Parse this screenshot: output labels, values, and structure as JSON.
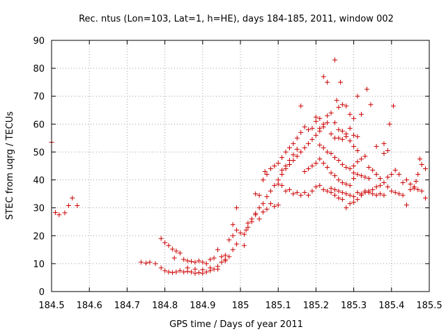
{
  "chart_data": {
    "type": "scatter",
    "title": "Rec. ntus (Lon=103, Lat=1, h=HE), days 184-185, 2011, window 002",
    "xlabel": "GPS time / Days of year 2011",
    "ylabel": "STEC from uqrg / TECUs",
    "xlim": [
      184.5,
      185.5
    ],
    "ylim": [
      0,
      90
    ],
    "x_ticks": [
      184.5,
      184.6,
      184.7,
      184.8,
      184.9,
      185,
      185.1,
      185.2,
      185.3,
      185.4,
      185.5
    ],
    "x_tick_labels": [
      "184.5",
      "184.6",
      "184.7",
      "184.8",
      "184.9",
      "185",
      "185.1",
      "185.2",
      "185.3",
      "185.4",
      "185.5"
    ],
    "y_ticks": [
      0,
      10,
      20,
      30,
      40,
      50,
      60,
      70,
      80,
      90
    ],
    "y_tick_labels": [
      "0",
      "10",
      "20",
      "30",
      "40",
      "50",
      "60",
      "70",
      "80",
      "90"
    ],
    "grid": true,
    "marker": "plus",
    "color": "#cc0000",
    "series": [
      {
        "points": [
          [
            184.5,
            53.5
          ],
          [
            184.51,
            28.3
          ],
          [
            184.52,
            27.5
          ],
          [
            184.535,
            28.2
          ],
          [
            184.545,
            30.8
          ],
          [
            184.555,
            33.5
          ],
          [
            184.568,
            30.8
          ],
          [
            184.737,
            10.5
          ],
          [
            184.75,
            10.2
          ],
          [
            184.76,
            10.5
          ],
          [
            184.775,
            10.0
          ],
          [
            184.79,
            19.0
          ],
          [
            184.8,
            17.5
          ],
          [
            184.81,
            16.5
          ],
          [
            184.82,
            15.2
          ],
          [
            184.83,
            14.5
          ],
          [
            184.84,
            13.8
          ],
          [
            184.825,
            12.0
          ],
          [
            184.85,
            11.5
          ],
          [
            184.86,
            11.0
          ],
          [
            184.87,
            10.8
          ],
          [
            184.88,
            10.5
          ],
          [
            184.89,
            11.0
          ],
          [
            184.9,
            10.5
          ],
          [
            184.91,
            10.0
          ],
          [
            184.92,
            11.5
          ],
          [
            184.93,
            12.0
          ],
          [
            184.94,
            15.0
          ],
          [
            184.95,
            12.5
          ],
          [
            184.96,
            13.0
          ],
          [
            184.97,
            18.5
          ],
          [
            184.98,
            20.0
          ],
          [
            184.99,
            22.0
          ],
          [
            184.99,
            30.0
          ],
          [
            185.0,
            21.0
          ],
          [
            184.79,
            8.5
          ],
          [
            184.8,
            7.5
          ],
          [
            184.81,
            7.0
          ],
          [
            184.82,
            6.8
          ],
          [
            184.83,
            7.0
          ],
          [
            184.84,
            7.5
          ],
          [
            184.85,
            7.0
          ],
          [
            184.86,
            7.2
          ],
          [
            184.87,
            7.0
          ],
          [
            184.88,
            6.5
          ],
          [
            184.89,
            6.8
          ],
          [
            184.9,
            6.5
          ],
          [
            184.91,
            7.0
          ],
          [
            184.92,
            7.5
          ],
          [
            184.93,
            8.0
          ],
          [
            184.94,
            9.0
          ],
          [
            184.95,
            10.5
          ],
          [
            184.96,
            11.5
          ],
          [
            184.97,
            12.5
          ],
          [
            184.98,
            15.0
          ],
          [
            184.99,
            17.0
          ],
          [
            184.86,
            8.5
          ],
          [
            184.88,
            8.0
          ],
          [
            184.9,
            7.8
          ],
          [
            184.92,
            8.5
          ],
          [
            184.94,
            8.0
          ],
          [
            184.96,
            11.0
          ],
          [
            184.98,
            24.0
          ],
          [
            185.01,
            16.5
          ],
          [
            185.015,
            22.0
          ],
          [
            185.02,
            24.5
          ],
          [
            185.03,
            26.0
          ],
          [
            185.04,
            28.0
          ],
          [
            185.05,
            30.0
          ],
          [
            185.06,
            31.5
          ],
          [
            185.07,
            34.0
          ],
          [
            185.08,
            36.0
          ],
          [
            185.09,
            38.0
          ],
          [
            185.1,
            38.5
          ],
          [
            185.01,
            20.5
          ],
          [
            185.02,
            23.0
          ],
          [
            185.03,
            25.0
          ],
          [
            185.04,
            27.5
          ],
          [
            185.05,
            26.0
          ],
          [
            185.06,
            28.5
          ],
          [
            185.07,
            29.5
          ],
          [
            185.08,
            31.5
          ],
          [
            185.09,
            30.5
          ],
          [
            185.1,
            31.0
          ],
          [
            185.04,
            35.0
          ],
          [
            185.05,
            34.5
          ],
          [
            185.06,
            40.0
          ],
          [
            185.065,
            43.0
          ],
          [
            185.07,
            42.0
          ],
          [
            185.08,
            44.0
          ],
          [
            185.09,
            45.0
          ],
          [
            185.1,
            46.0
          ],
          [
            185.11,
            48.0
          ],
          [
            185.12,
            50.0
          ],
          [
            185.13,
            51.5
          ],
          [
            185.14,
            53.0
          ],
          [
            185.15,
            55.0
          ],
          [
            185.16,
            57.0
          ],
          [
            185.1,
            40.0
          ],
          [
            185.11,
            42.0
          ],
          [
            185.12,
            44.0
          ],
          [
            185.13,
            45.5
          ],
          [
            185.14,
            47.0
          ],
          [
            185.15,
            48.5
          ],
          [
            185.16,
            50.0
          ],
          [
            185.17,
            51.5
          ],
          [
            185.18,
            53.0
          ],
          [
            185.19,
            54.5
          ],
          [
            185.2,
            56.0
          ],
          [
            185.21,
            57.5
          ],
          [
            185.22,
            59.0
          ],
          [
            185.23,
            60.5
          ],
          [
            185.11,
            38.0
          ],
          [
            185.12,
            36.0
          ],
          [
            185.13,
            36.5
          ],
          [
            185.14,
            35.0
          ],
          [
            185.15,
            35.5
          ],
          [
            185.16,
            34.5
          ],
          [
            185.17,
            35.5
          ],
          [
            185.18,
            34.5
          ],
          [
            185.19,
            36.0
          ],
          [
            185.2,
            37.5
          ],
          [
            185.21,
            38.0
          ],
          [
            185.22,
            36.5
          ],
          [
            185.23,
            36.0
          ],
          [
            185.24,
            37.0
          ],
          [
            185.11,
            43.5
          ],
          [
            185.12,
            45.0
          ],
          [
            185.13,
            47.0
          ],
          [
            185.14,
            49.0
          ],
          [
            185.15,
            51.0
          ],
          [
            185.16,
            66.5
          ],
          [
            185.17,
            59.0
          ],
          [
            185.18,
            58.0
          ],
          [
            185.19,
            58.5
          ],
          [
            185.2,
            62.5
          ],
          [
            185.21,
            62.0
          ],
          [
            185.22,
            77.0
          ],
          [
            185.23,
            75.0
          ],
          [
            185.24,
            64.0
          ],
          [
            185.25,
            83.0
          ],
          [
            185.255,
            68.5
          ],
          [
            185.26,
            66.0
          ],
          [
            185.265,
            75.0
          ],
          [
            185.27,
            67.0
          ],
          [
            185.28,
            66.5
          ],
          [
            185.29,
            63.5
          ],
          [
            185.3,
            62.0
          ],
          [
            185.31,
            70.0
          ],
          [
            185.32,
            63.5
          ],
          [
            185.335,
            72.5
          ],
          [
            185.345,
            67.0
          ],
          [
            185.36,
            52.0
          ],
          [
            185.38,
            53.0
          ],
          [
            185.395,
            60.0
          ],
          [
            185.405,
            66.5
          ],
          [
            185.2,
            61.0
          ],
          [
            185.21,
            58.5
          ],
          [
            185.22,
            60.0
          ],
          [
            185.23,
            63.0
          ],
          [
            185.24,
            56.5
          ],
          [
            185.25,
            55.0
          ],
          [
            185.26,
            55.0
          ],
          [
            185.27,
            54.5
          ],
          [
            185.28,
            55.5
          ],
          [
            185.29,
            54.0
          ],
          [
            185.3,
            52.0
          ],
          [
            185.31,
            50.5
          ],
          [
            185.25,
            60.5
          ],
          [
            185.26,
            58.0
          ],
          [
            185.27,
            57.5
          ],
          [
            185.28,
            56.5
          ],
          [
            185.29,
            58.5
          ],
          [
            185.3,
            56.0
          ],
          [
            185.31,
            55.5
          ],
          [
            185.17,
            43.0
          ],
          [
            185.18,
            44.0
          ],
          [
            185.19,
            45.0
          ],
          [
            185.2,
            46.0
          ],
          [
            185.21,
            47.5
          ],
          [
            185.22,
            46.0
          ],
          [
            185.23,
            44.5
          ],
          [
            185.24,
            42.5
          ],
          [
            185.25,
            41.5
          ],
          [
            185.26,
            40.0
          ],
          [
            185.27,
            39.0
          ],
          [
            185.28,
            38.5
          ],
          [
            185.29,
            38.0
          ],
          [
            185.3,
            40.5
          ],
          [
            185.21,
            52.5
          ],
          [
            185.22,
            51.5
          ],
          [
            185.23,
            50.0
          ],
          [
            185.24,
            49.5
          ],
          [
            185.25,
            48.0
          ],
          [
            185.26,
            47.0
          ],
          [
            185.27,
            45.5
          ],
          [
            185.28,
            44.5
          ],
          [
            185.29,
            44.0
          ],
          [
            185.3,
            42.5
          ],
          [
            185.31,
            42.0
          ],
          [
            185.32,
            41.5
          ],
          [
            185.33,
            41.0
          ],
          [
            185.34,
            40.5
          ],
          [
            185.24,
            35.5
          ],
          [
            185.25,
            34.5
          ],
          [
            185.26,
            33.5
          ],
          [
            185.27,
            33.0
          ],
          [
            185.28,
            30.0
          ],
          [
            185.29,
            31.5
          ],
          [
            185.3,
            32.0
          ],
          [
            185.31,
            33.0
          ],
          [
            185.32,
            34.5
          ],
          [
            185.33,
            35.5
          ],
          [
            185.34,
            36.0
          ],
          [
            185.35,
            36.5
          ],
          [
            185.36,
            37.5
          ],
          [
            185.37,
            38.0
          ],
          [
            185.25,
            36.5
          ],
          [
            185.26,
            36.0
          ],
          [
            185.27,
            35.5
          ],
          [
            185.28,
            35.0
          ],
          [
            185.29,
            34.5
          ],
          [
            185.3,
            34.0
          ],
          [
            185.31,
            35.5
          ],
          [
            185.32,
            35.0
          ],
          [
            185.33,
            36.0
          ],
          [
            185.34,
            35.5
          ],
          [
            185.35,
            35.0
          ],
          [
            185.36,
            34.5
          ],
          [
            185.37,
            35.0
          ],
          [
            185.38,
            34.5
          ],
          [
            185.3,
            45.0
          ],
          [
            185.31,
            46.5
          ],
          [
            185.32,
            47.5
          ],
          [
            185.33,
            48.5
          ],
          [
            185.34,
            44.5
          ],
          [
            185.35,
            43.5
          ],
          [
            185.36,
            42.0
          ],
          [
            185.37,
            40.5
          ],
          [
            185.38,
            39.0
          ],
          [
            185.39,
            37.5
          ],
          [
            185.4,
            36.0
          ],
          [
            185.41,
            35.5
          ],
          [
            185.42,
            35.0
          ],
          [
            185.43,
            34.5
          ],
          [
            185.39,
            41.0
          ],
          [
            185.4,
            42.0
          ],
          [
            185.41,
            43.5
          ],
          [
            185.42,
            42.0
          ],
          [
            185.43,
            39.0
          ],
          [
            185.44,
            40.0
          ],
          [
            185.45,
            38.5
          ],
          [
            185.46,
            37.5
          ],
          [
            185.47,
            36.5
          ],
          [
            185.48,
            36.0
          ],
          [
            185.49,
            33.5
          ],
          [
            185.44,
            31.0
          ],
          [
            185.45,
            36.5
          ],
          [
            185.46,
            37.0
          ],
          [
            185.465,
            39.5
          ],
          [
            185.47,
            42.0
          ],
          [
            185.475,
            47.5
          ],
          [
            185.49,
            44.0
          ],
          [
            185.48,
            45.5
          ],
          [
            185.39,
            50.5
          ],
          [
            185.38,
            49.5
          ]
        ]
      }
    ]
  }
}
